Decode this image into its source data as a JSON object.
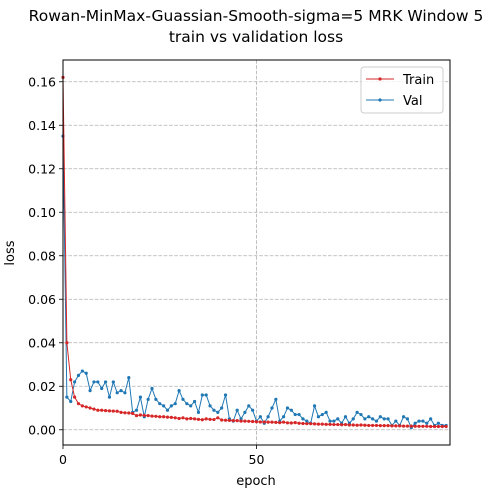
{
  "chart_data": {
    "type": "line",
    "title_line1": "Rowan-MinMax-Guassian-Smooth-sigma=5 MRK Window 5",
    "title_line2": "train vs validation loss",
    "xlabel": "epoch",
    "ylabel": "loss",
    "xlim": [
      0,
      100
    ],
    "ylim": [
      -0.007,
      0.17
    ],
    "xticks": [
      0,
      50
    ],
    "yticks": [
      0.0,
      0.02,
      0.04,
      0.06,
      0.08,
      0.1,
      0.12,
      0.14,
      0.16
    ],
    "ytick_labels": [
      "0.00",
      "0.02",
      "0.04",
      "0.06",
      "0.08",
      "0.10",
      "0.12",
      "0.14",
      "0.16"
    ],
    "grid": true,
    "legend_placement": "top-right",
    "colors": {
      "train": "#d62728",
      "val": "#1f77b4"
    },
    "series": [
      {
        "name": "Train",
        "key": "train",
        "x": [
          0,
          1,
          2,
          3,
          4,
          5,
          6,
          7,
          8,
          9,
          10,
          11,
          12,
          13,
          14,
          15,
          16,
          17,
          18,
          19,
          20,
          21,
          22,
          23,
          24,
          25,
          26,
          27,
          28,
          29,
          30,
          31,
          32,
          33,
          34,
          35,
          36,
          37,
          38,
          39,
          40,
          41,
          42,
          43,
          44,
          45,
          46,
          47,
          48,
          49,
          50,
          51,
          52,
          53,
          54,
          55,
          56,
          57,
          58,
          59,
          60,
          61,
          62,
          63,
          64,
          65,
          66,
          67,
          68,
          69,
          70,
          71,
          72,
          73,
          74,
          75,
          76,
          77,
          78,
          79,
          80,
          81,
          82,
          83,
          84,
          85,
          86,
          87,
          88,
          89,
          90,
          91,
          92,
          93,
          94,
          95,
          96,
          97,
          98,
          99
        ],
        "values": [
          0.162,
          0.04,
          0.023,
          0.015,
          0.012,
          0.011,
          0.0105,
          0.01,
          0.0095,
          0.009,
          0.009,
          0.0088,
          0.0087,
          0.0086,
          0.0085,
          0.008,
          0.0078,
          0.0077,
          0.0075,
          0.0065,
          0.0068,
          0.0066,
          0.0065,
          0.0063,
          0.0062,
          0.006,
          0.006,
          0.0058,
          0.0057,
          0.0055,
          0.0052,
          0.0055,
          0.005,
          0.0052,
          0.005,
          0.0048,
          0.0046,
          0.005,
          0.0048,
          0.0047,
          0.0055,
          0.0045,
          0.0044,
          0.0043,
          0.0042,
          0.0042,
          0.004,
          0.004,
          0.0039,
          0.0038,
          0.0037,
          0.0036,
          0.0036,
          0.0035,
          0.0035,
          0.0034,
          0.0033,
          0.0035,
          0.0032,
          0.0031,
          0.0033,
          0.003,
          0.0029,
          0.0028,
          0.0028,
          0.0027,
          0.0026,
          0.0026,
          0.0025,
          0.0025,
          0.0024,
          0.0024,
          0.0023,
          0.0024,
          0.0022,
          0.0022,
          0.0021,
          0.0022,
          0.0021,
          0.002,
          0.002,
          0.002,
          0.0019,
          0.0019,
          0.0019,
          0.0018,
          0.0018,
          0.0018,
          0.0017,
          0.0017,
          0.0017,
          0.0016,
          0.0016,
          0.0016,
          0.0016,
          0.0015,
          0.0015,
          0.0015,
          0.0015,
          0.0015
        ]
      },
      {
        "name": "Val",
        "key": "val",
        "x": [
          0,
          1,
          2,
          3,
          4,
          5,
          6,
          7,
          8,
          9,
          10,
          11,
          12,
          13,
          14,
          15,
          16,
          17,
          18,
          19,
          20,
          21,
          22,
          23,
          24,
          25,
          26,
          27,
          28,
          29,
          30,
          31,
          32,
          33,
          34,
          35,
          36,
          37,
          38,
          39,
          40,
          41,
          42,
          43,
          44,
          45,
          46,
          47,
          48,
          49,
          50,
          51,
          52,
          53,
          54,
          55,
          56,
          57,
          58,
          59,
          60,
          61,
          62,
          63,
          64,
          65,
          66,
          67,
          68,
          69,
          70,
          71,
          72,
          73,
          74,
          75,
          76,
          77,
          78,
          79,
          80,
          81,
          82,
          83,
          84,
          85,
          86,
          87,
          88,
          89,
          90,
          91,
          92,
          93,
          94,
          95,
          96,
          97,
          98,
          99
        ],
        "values": [
          0.135,
          0.015,
          0.013,
          0.022,
          0.025,
          0.027,
          0.026,
          0.018,
          0.022,
          0.022,
          0.019,
          0.022,
          0.015,
          0.022,
          0.017,
          0.018,
          0.017,
          0.024,
          0.008,
          0.009,
          0.015,
          0.006,
          0.014,
          0.019,
          0.014,
          0.012,
          0.011,
          0.009,
          0.011,
          0.012,
          0.018,
          0.014,
          0.012,
          0.011,
          0.013,
          0.008,
          0.016,
          0.016,
          0.011,
          0.009,
          0.008,
          0.01,
          0.016,
          0.005,
          0.004,
          0.009,
          0.005,
          0.008,
          0.011,
          0.009,
          0.004,
          0.006,
          0.003,
          0.006,
          0.01,
          0.014,
          0.004,
          0.006,
          0.01,
          0.009,
          0.007,
          0.007,
          0.005,
          0.004,
          0.003,
          0.011,
          0.006,
          0.007,
          0.008,
          0.004,
          0.004,
          0.005,
          0.003,
          0.006,
          0.003,
          0.005,
          0.008,
          0.007,
          0.005,
          0.006,
          0.005,
          0.004,
          0.006,
          0.005,
          0.005,
          0.002,
          0.004,
          0.002,
          0.006,
          0.005,
          0.001,
          0.003,
          0.004,
          0.004,
          0.003,
          0.005,
          0.002,
          0.003,
          0.002,
          0.002
        ]
      }
    ]
  }
}
